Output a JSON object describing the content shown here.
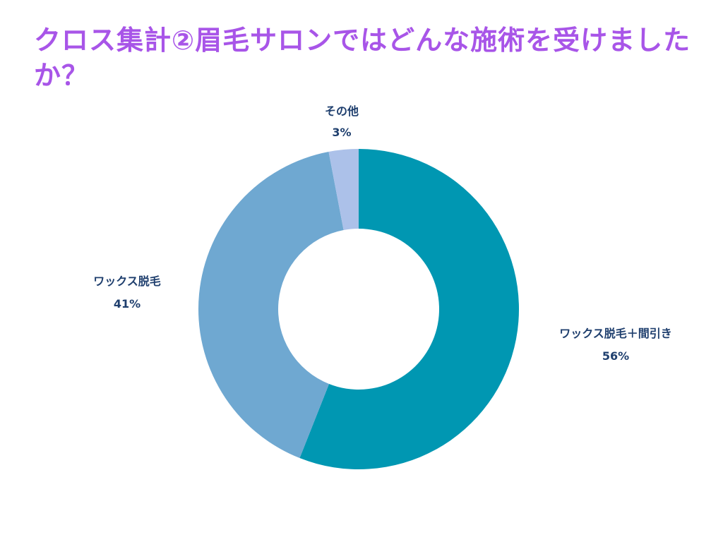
{
  "title": "クロス集計②眉毛サロンではどんな施術を受けましたか？",
  "colors": {
    "title": "#a855e8",
    "label": "#1f3f6e"
  },
  "chart_data": {
    "type": "pie",
    "donut": true,
    "title": "クロス集計②眉毛サロンではどんな施術を受けましたか？",
    "slices": [
      {
        "label": "ワックス脱毛＋間引き",
        "value": 56,
        "display": "56%",
        "color": "#0097b2"
      },
      {
        "label": "ワックス脱毛",
        "value": 41,
        "display": "41%",
        "color": "#6fa8d1"
      },
      {
        "label": "その他",
        "value": 3,
        "display": "3%",
        "color": "#acc1e9"
      }
    ]
  }
}
